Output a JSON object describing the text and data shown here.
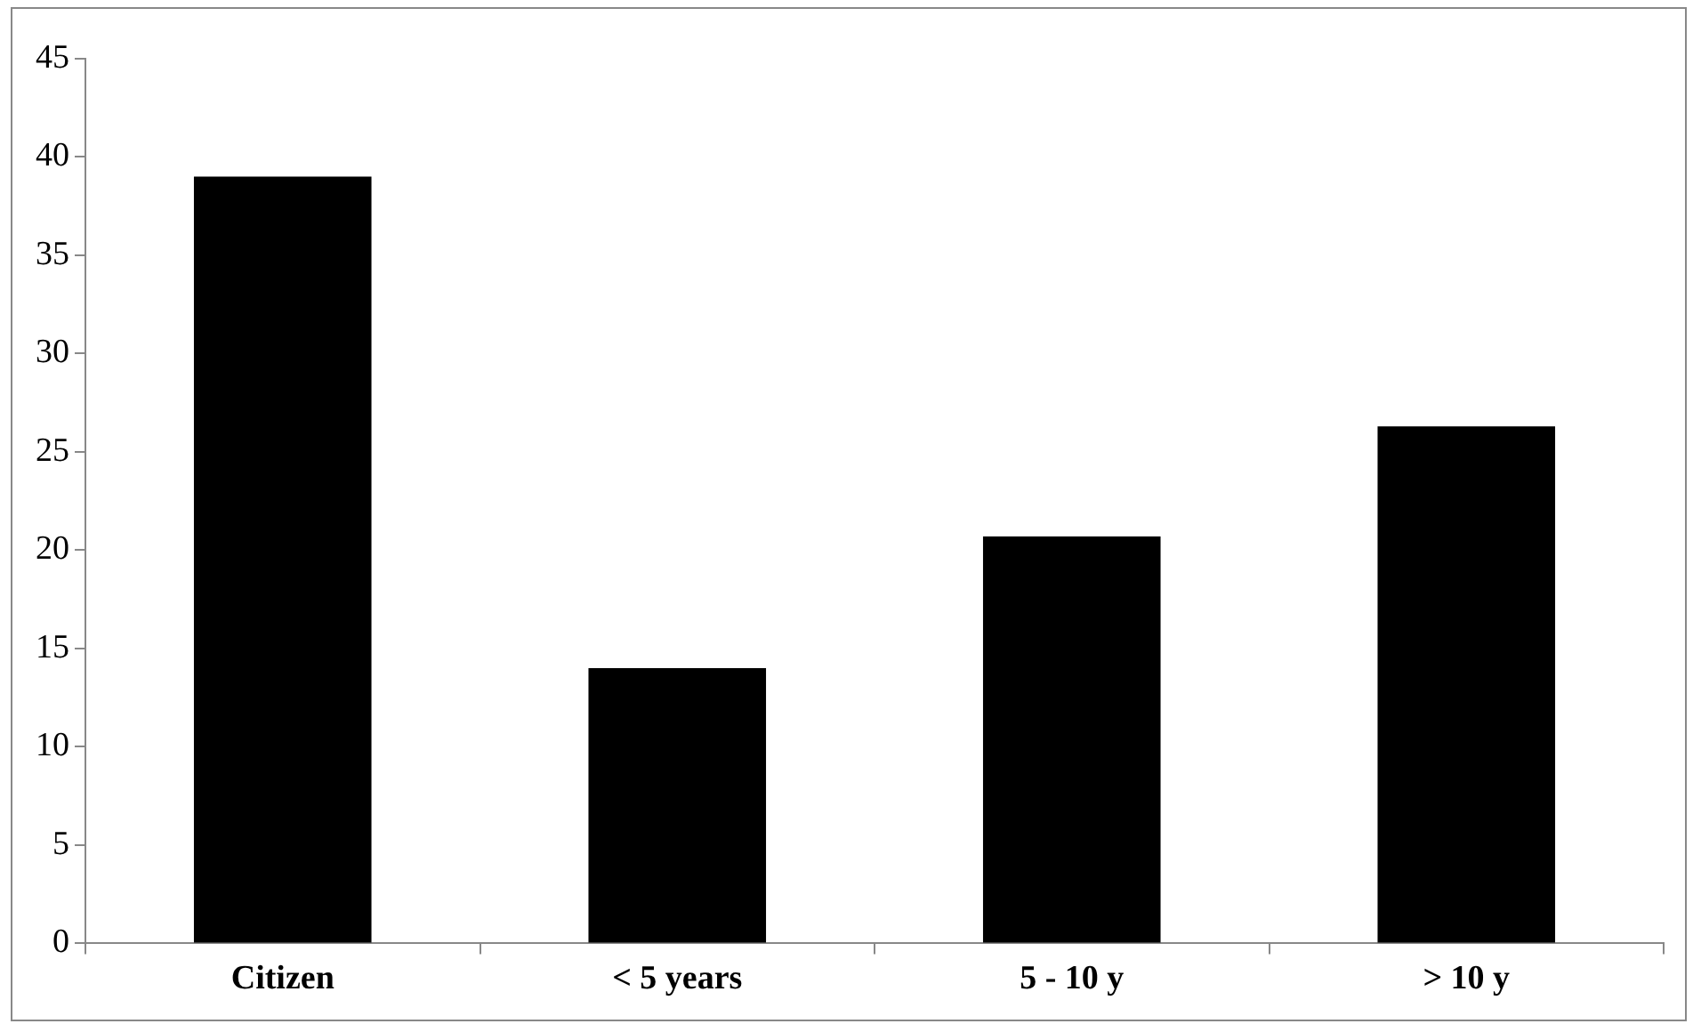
{
  "chart_data": {
    "type": "bar",
    "categories": [
      "Citizen",
      "< 5 years",
      "5 - 10 y",
      "> 10 y"
    ],
    "values": [
      39,
      14,
      20.7,
      26.3
    ],
    "color": "#000000",
    "ylim": [
      0,
      45
    ],
    "yticks": [
      0,
      5,
      10,
      15,
      20,
      25,
      30,
      35,
      40,
      45
    ],
    "grid": false,
    "legend": false
  }
}
